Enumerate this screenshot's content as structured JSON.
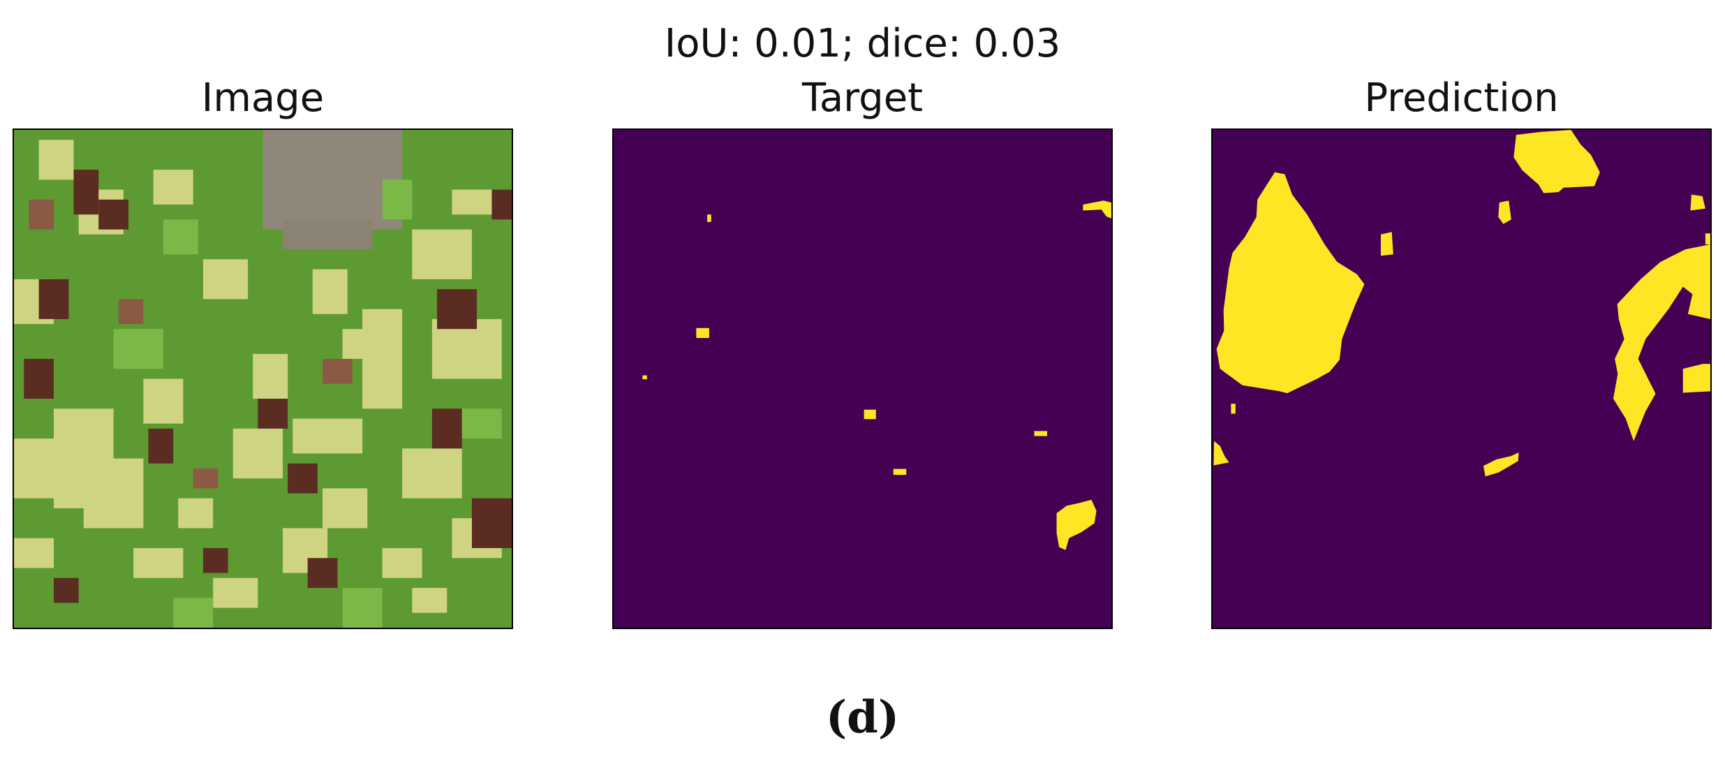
{
  "figure": {
    "suptitle": "IoU: 0.01; dice: 0.03",
    "caption": "(d)"
  },
  "panels": [
    {
      "title": "Image"
    },
    {
      "title": "Target"
    },
    {
      "title": "Prediction"
    }
  ],
  "colors": {
    "mask_background": "#440154",
    "mask_foreground": "#fde725",
    "field_green": "#5e9a32",
    "field_yellow": "#cfd483",
    "field_brown": "#5a2c22",
    "urban_gray": "#8f877a"
  }
}
